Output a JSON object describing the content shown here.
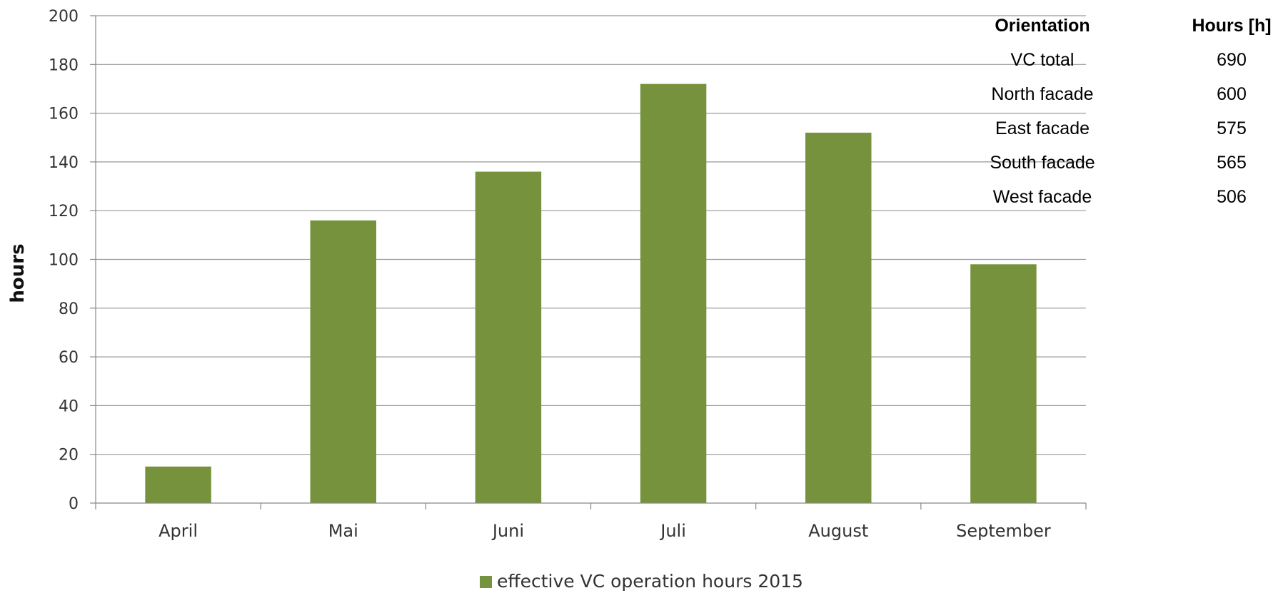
{
  "chart_data": {
    "type": "bar",
    "categories": [
      "April",
      "Mai",
      "Juni",
      "Juli",
      "August",
      "September"
    ],
    "series": [
      {
        "name": "effective VC operation hours 2015",
        "values": [
          15,
          116,
          136,
          172,
          152,
          98
        ]
      }
    ],
    "title": "",
    "xlabel": "",
    "ylabel": "hours",
    "ylim": [
      0,
      200
    ],
    "yticks": [
      0,
      20,
      40,
      60,
      80,
      100,
      120,
      140,
      160,
      180,
      200
    ],
    "grid": true,
    "legend": "bottom-center",
    "bar_color": "#76923c",
    "table": {
      "headers": [
        "Orientation",
        "Hours [h]"
      ],
      "rows": [
        [
          "VC total",
          "690"
        ],
        [
          "North facade",
          "600"
        ],
        [
          "East facade",
          "575"
        ],
        [
          "South facade",
          "565"
        ],
        [
          "West facade",
          "506"
        ]
      ]
    }
  }
}
